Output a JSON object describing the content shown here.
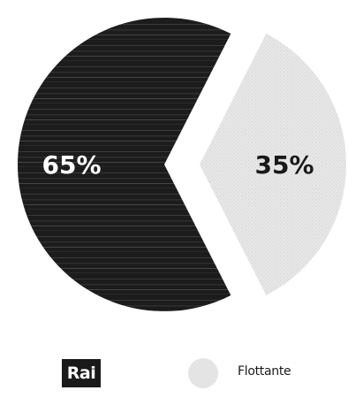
{
  "chart_data": {
    "type": "pie",
    "title": "",
    "slices": [
      {
        "label": "Rai",
        "value": 65,
        "display": "65%",
        "color": "#1c1c1c",
        "label_color": "#ffffff"
      },
      {
        "label": "Flottante",
        "value": 35,
        "display": "35%",
        "color": "#e4e4e4",
        "label_color": "#1a1a1a"
      }
    ],
    "legend": {
      "placement": "bottom",
      "entries": [
        {
          "name": "Rai",
          "style": "logo"
        },
        {
          "name": "Flottante",
          "style": "swatch"
        }
      ]
    }
  }
}
